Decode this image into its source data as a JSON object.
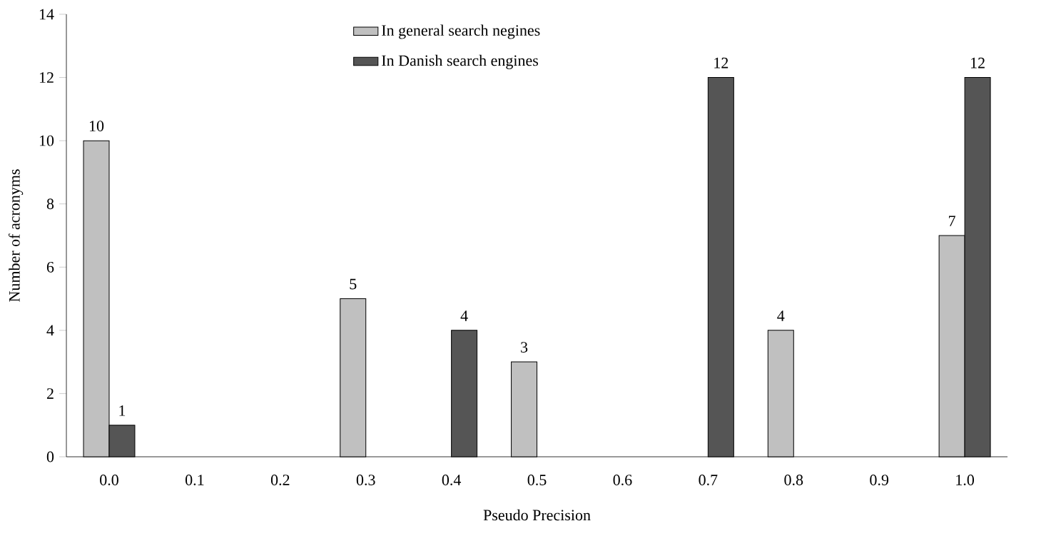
{
  "chart_data": {
    "type": "bar",
    "xlabel": "Pseudo Precision",
    "ylabel": "Number of acronyms",
    "categories": [
      "0.0",
      "0.1",
      "0.2",
      "0.3",
      "0.4",
      "0.5",
      "0.6",
      "0.7",
      "0.8",
      "0.9",
      "1.0"
    ],
    "series": [
      {
        "name": "In general search negines",
        "color": "#c0c0c0",
        "values": [
          10,
          null,
          null,
          5,
          null,
          3,
          null,
          null,
          4,
          null,
          7
        ]
      },
      {
        "name": "In Danish search engines",
        "color": "#555555",
        "values": [
          1,
          null,
          null,
          null,
          4,
          null,
          null,
          12,
          null,
          null,
          12
        ]
      }
    ],
    "ylim": [
      0,
      14
    ],
    "yticks": [
      0,
      2,
      4,
      6,
      8,
      10,
      12,
      14
    ],
    "data_labels": true,
    "grid": false,
    "legend": "top"
  }
}
